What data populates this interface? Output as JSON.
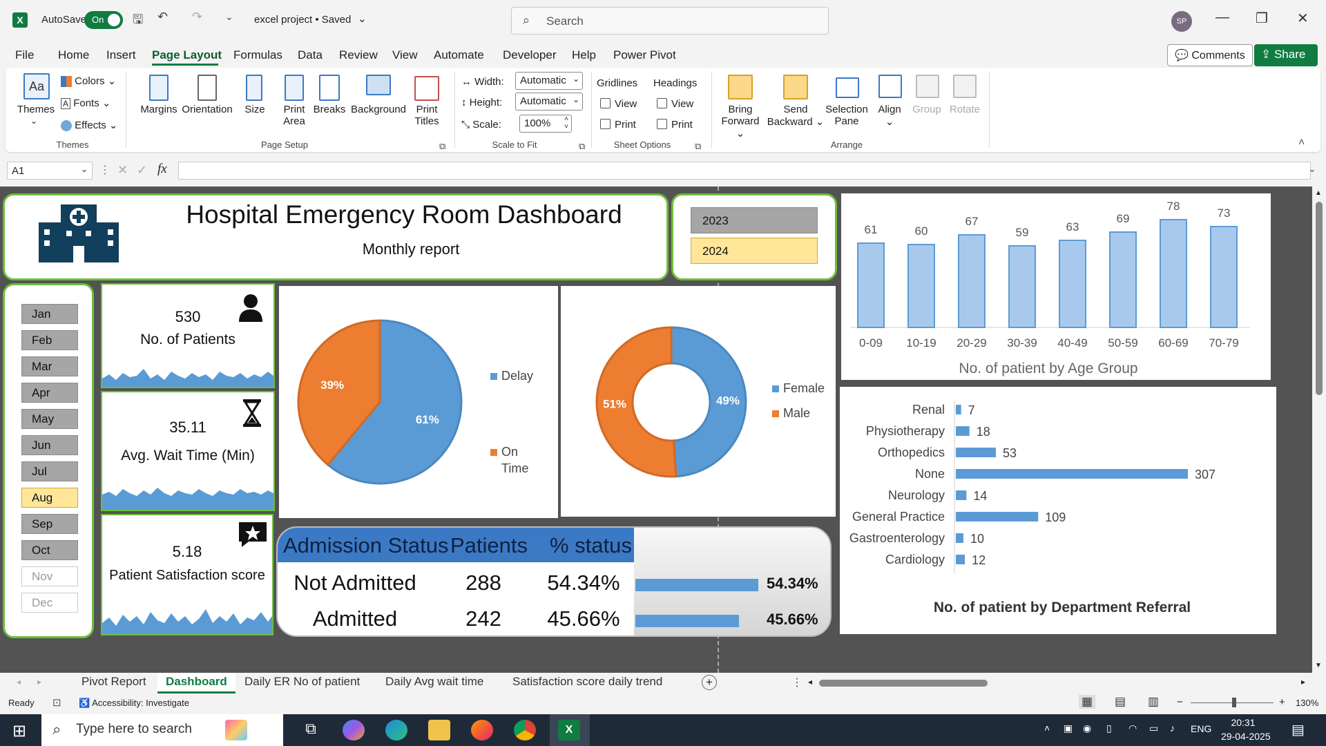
{
  "titlebar": {
    "autosave_label": "AutoSave",
    "autosave_state": "On",
    "filename": "excel project • Saved",
    "search_placeholder": "Search",
    "user_initials": "SP"
  },
  "menu": [
    "File",
    "Home",
    "Insert",
    "Page Layout",
    "Formulas",
    "Data",
    "Review",
    "View",
    "Automate",
    "Developer",
    "Help",
    "Power Pivot"
  ],
  "menu_active": "Page Layout",
  "header_buttons": {
    "comments": "Comments",
    "share": "Share"
  },
  "ribbon": {
    "themes": {
      "themes": "Themes",
      "colors": "Colors",
      "fonts": "Fonts",
      "effects": "Effects",
      "group": "Themes"
    },
    "page_setup": {
      "margins": "Margins",
      "orientation": "Orientation",
      "size": "Size",
      "print_area_1": "Print",
      "print_area_2": "Area",
      "breaks": "Breaks",
      "background": "Background",
      "print_titles_1": "Print",
      "print_titles_2": "Titles",
      "group": "Page Setup"
    },
    "scale": {
      "width_label": "Width:",
      "width_value": "Automatic",
      "height_label": "Height:",
      "height_value": "Automatic",
      "scale_label": "Scale:",
      "scale_value": "100%",
      "group": "Scale to Fit"
    },
    "sheet_options": {
      "gridlines": "Gridlines",
      "headings": "Headings",
      "view": "View",
      "print": "Print",
      "group": "Sheet Options"
    },
    "arrange": {
      "bring_1": "Bring",
      "bring_2": "Forward",
      "send_1": "Send",
      "send_2": "Backward",
      "selection_1": "Selection",
      "selection_2": "Pane",
      "align": "Align",
      "group_btn": "Group",
      "rotate": "Rotate",
      "group": "Arrange"
    }
  },
  "formula": {
    "namebox": "A1",
    "content": ""
  },
  "dashboard": {
    "title": "Hospital Emergency Room Dashboard",
    "subtitle": "Monthly report",
    "years": [
      "2023",
      "2024"
    ],
    "year_selected": "2024",
    "months": [
      "Jan",
      "Feb",
      "Mar",
      "Apr",
      "May",
      "Jun",
      "Jul",
      "Aug",
      "Sep",
      "Oct",
      "Nov",
      "Dec"
    ],
    "month_selected": "Aug",
    "months_disabled": [
      "Nov",
      "Dec"
    ],
    "kpi": {
      "patients_value": "530",
      "patients_label": "No. of Patients",
      "wait_value": "35.11",
      "wait_label": "Avg. Wait Time (Min)",
      "satisfaction_value": "5.18",
      "satisfaction_label": "Patient Satisfaction score"
    },
    "admission_table": {
      "headers": [
        "Admission Status",
        "Patients",
        "% status"
      ],
      "rows": [
        {
          "status": "Not Admitted",
          "patients": "288",
          "pct": "54.34%",
          "pct_value": 54.34
        },
        {
          "status": "Admitted",
          "patients": "242",
          "pct": "45.66%",
          "pct_value": 45.66
        }
      ]
    }
  },
  "chart_data": [
    {
      "type": "pie",
      "series": [
        {
          "name": "Delay",
          "value": 61,
          "label": "61%",
          "color": "#5b9bd5"
        },
        {
          "name": "On Time",
          "value": 39,
          "label": "39%",
          "color": "#ed7d31"
        }
      ]
    },
    {
      "type": "pie",
      "donut": true,
      "series": [
        {
          "name": "Female",
          "value": 49,
          "label": "49%",
          "color": "#5b9bd5"
        },
        {
          "name": "Male",
          "value": 51,
          "label": "51%",
          "color": "#ed7d31"
        }
      ]
    },
    {
      "type": "bar",
      "title": "No. of patient by Age Group",
      "categories": [
        "0-09",
        "10-19",
        "20-29",
        "30-39",
        "40-49",
        "50-59",
        "60-69",
        "70-79"
      ],
      "values": [
        61,
        60,
        67,
        59,
        63,
        69,
        78,
        73
      ]
    },
    {
      "type": "bar",
      "orientation": "horizontal",
      "title": "No. of patient by Department Referral",
      "categories": [
        "Renal",
        "Physiotherapy",
        "Orthopedics",
        "None",
        "Neurology",
        "General Practice",
        "Gastroenterology",
        "Cardiology"
      ],
      "values": [
        7,
        18,
        53,
        307,
        14,
        109,
        10,
        12
      ]
    }
  ],
  "tabs": [
    "Pivot Report",
    "Dashboard",
    "Daily ER No of patient",
    "Daily Avg wait time",
    "Satisfaction score daily trend"
  ],
  "tab_active": "Dashboard",
  "status": {
    "ready": "Ready",
    "accessibility": "Accessibility: Investigate",
    "zoom": "130%"
  },
  "taskbar": {
    "search": "Type here to search",
    "lang": "ENG",
    "time": "20:31",
    "date": "29-04-2025"
  }
}
